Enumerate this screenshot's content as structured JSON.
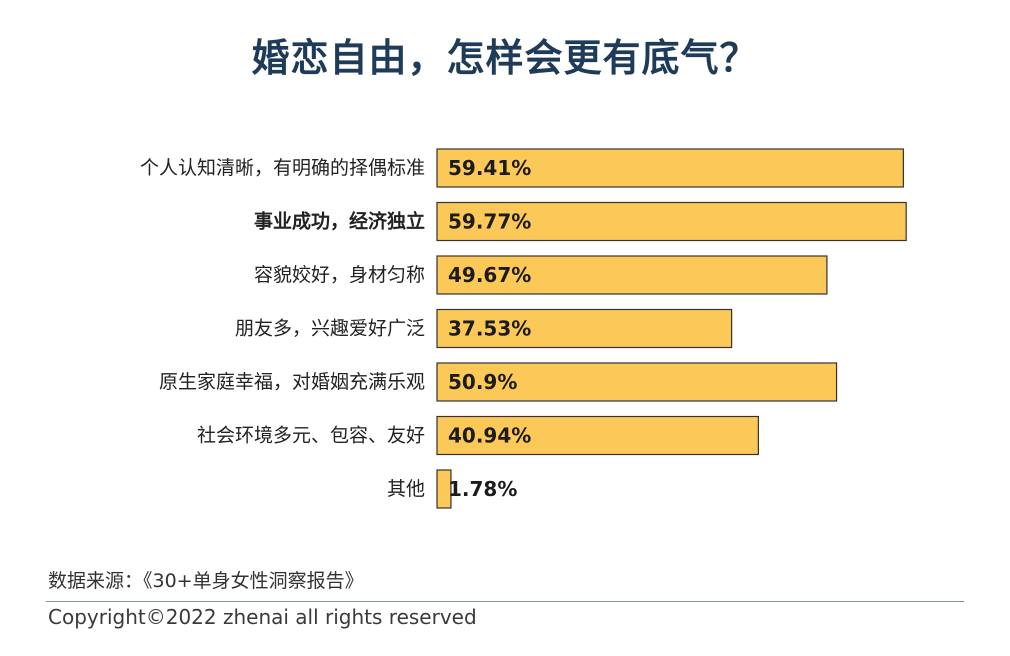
{
  "title": "婚恋自由，怎样会更有底气？",
  "source": "数据来源：《30+单身女性洞察报告》",
  "copyright": "Copyright©2022  zhenai  all rights reserved",
  "colors": {
    "bar_fill": "#fcc858",
    "bar_stroke": "#333333",
    "title": "#1f3b5a",
    "label": "#222222",
    "value": "#1c1c1c"
  },
  "chart_data": {
    "type": "bar",
    "orientation": "horizontal",
    "categories": [
      "个人认知清晰，有明确的择偶标准",
      "事业成功，经济独立",
      "容貌姣好，身材匀称",
      "朋友多，兴趣爱好广泛",
      "原生家庭幸福，对婚姻充满乐观",
      "社会环境多元、包容、友好",
      "其他"
    ],
    "values": [
      59.41,
      59.77,
      49.67,
      37.53,
      50.9,
      40.94,
      1.78
    ],
    "value_labels": [
      "59.41%",
      "59.77%",
      "49.67%",
      "37.53%",
      "50.9%",
      "40.94%",
      "1.78%"
    ],
    "highlight": [
      false,
      true,
      false,
      false,
      false,
      false,
      false
    ],
    "xlim": [
      0,
      100
    ],
    "grid": false,
    "legend": "none"
  }
}
